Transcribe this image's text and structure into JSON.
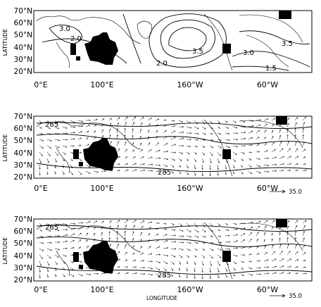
{
  "lat_ticks": [
    "70°N",
    "60°N",
    "50°N",
    "40°N",
    "30°N",
    "20°N"
  ],
  "lon_ticks": [
    "0°E",
    "100°E",
    "160°W",
    "60°W"
  ],
  "y_axis_label": "LATITUDE",
  "x_axis_label": "LONGITUDE",
  "reference_vector_label": "35.0",
  "panels": [
    {
      "id": "top",
      "type": "contour",
      "contour_labels": [
        "3.0",
        "2.0",
        "3.5",
        "2.0",
        "3.0",
        "3.5",
        "1.5"
      ]
    },
    {
      "id": "middle",
      "type": "vector-field",
      "contour_labels": [
        "265",
        "285"
      ]
    },
    {
      "id": "bottom",
      "type": "vector-field",
      "contour_labels": [
        "265",
        "285"
      ]
    }
  ]
}
